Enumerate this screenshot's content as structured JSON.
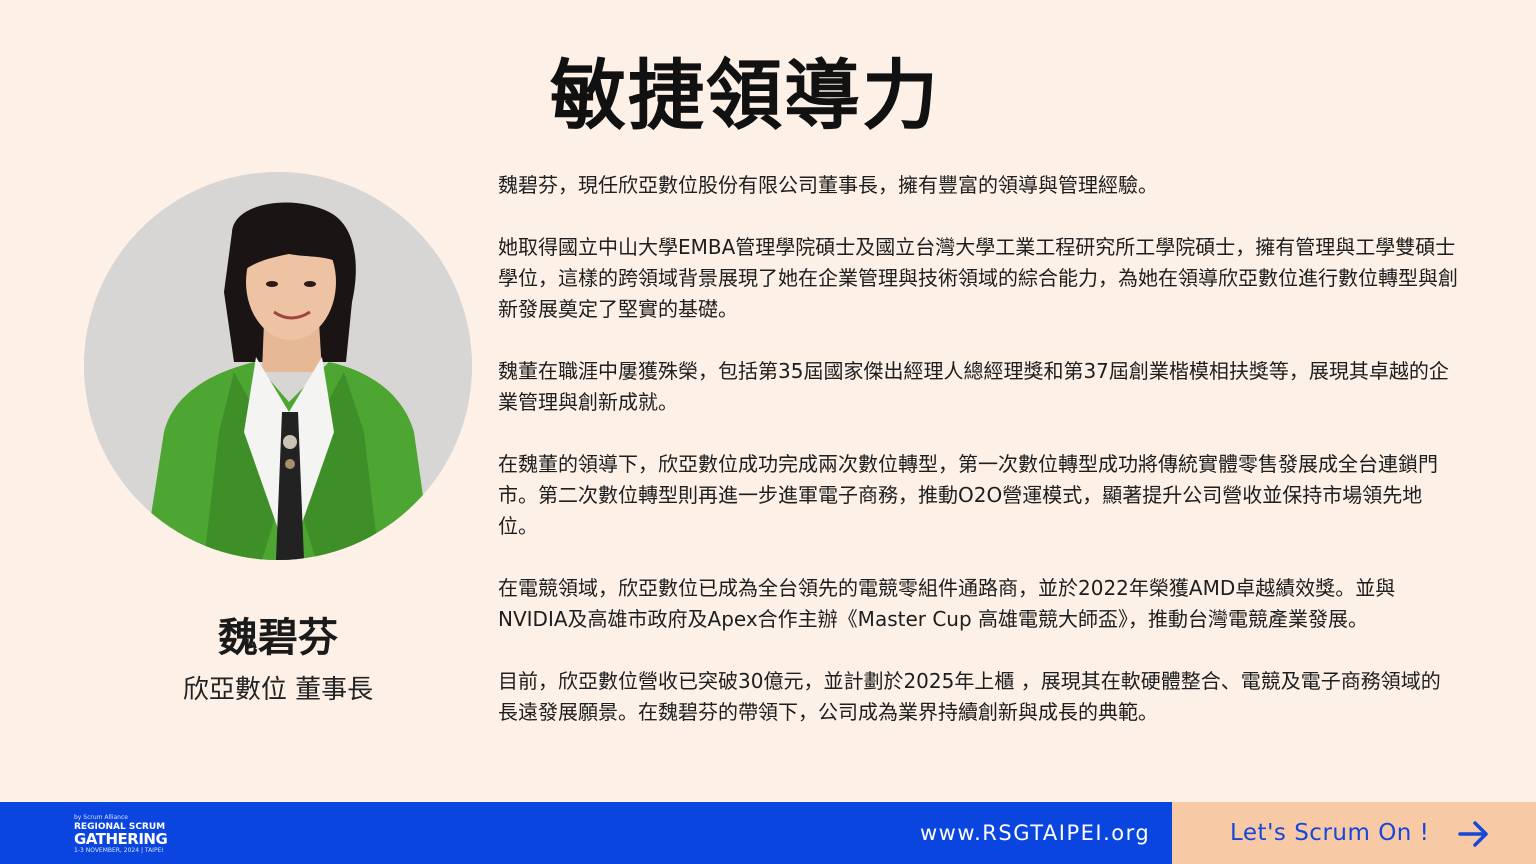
{
  "slide": {
    "title": "敏捷領導力"
  },
  "speaker": {
    "name": "魏碧芬",
    "role": "欣亞數位 董事長",
    "photo": "speaker-portrait"
  },
  "bio": {
    "paragraphs": [
      "魏碧芬，現任欣亞數位股份有限公司董事長，擁有豐富的領導與管理經驗。",
      "她取得國立中山大學EMBA管理學院碩士及國立台灣大學工業工程研究所工學院碩士，擁有管理與工學雙碩士學位，這樣的跨領域背景展現了她在企業管理與技術領域的綜合能力，為她在領導欣亞數位進行數位轉型與創新發展奠定了堅實的基礎。",
      "魏董在職涯中屢獲殊榮，包括第35屆國家傑出經理人總經理獎和第37屆創業楷模相扶獎等，展現其卓越的企業管理與創新成就。",
      "在魏董的領導下，欣亞數位成功完成兩次數位轉型，第一次數位轉型成功將傳統實體零售發展成全台連鎖門市。第二次數位轉型則再進一步進軍電子商務，推動O2O營運模式，顯著提升公司營收並保持市場領先地位。",
      "在電競領域，欣亞數位已成為全台領先的電競零組件通路商，並於2022年榮獲AMD卓越績效獎。並與NVIDIA及高雄市政府及Apex合作主辦《Master Cup 高雄電競大師盃》，推動台灣電競產業發展。",
      "目前，欣亞數位營收已突破30億元，並計劃於2025年上櫃 ，展現其在軟硬體整合、電競及電子商務領域的長遠發展願景。在魏碧芬的帶領下，公司成為業界持續創新與成長的典範。"
    ]
  },
  "footer": {
    "logo_small": "by Scrum Alliance",
    "logo_mid": "REGIONAL SCRUM",
    "logo_big": "GATHERING",
    "logo_date": "1-3 NOVEMBER, 2024 | TAIPEI",
    "url": "www.RSGTAIPEI.org",
    "cta_label": "Let's Scrum On !",
    "cta_icon": "arrow-right-icon"
  },
  "colors": {
    "background": "#fdf0e6",
    "footer_blue": "#0a45e0",
    "cta_bg": "#f8c9a5",
    "cta_text": "#1747d8"
  }
}
